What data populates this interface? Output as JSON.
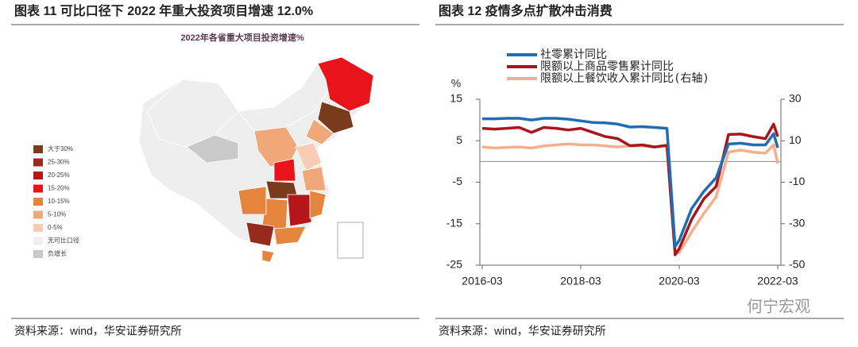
{
  "left": {
    "figure_title": "图表 11  可比口径下 2022 年重大投资项目增速 12.0%",
    "map_title": "2022年各省重大项目投资增速%",
    "legend": [
      {
        "label": "大于30%",
        "color": "#7a3b1c"
      },
      {
        "label": "25-30%",
        "color": "#962a1c"
      },
      {
        "label": "20-25%",
        "color": "#b5161a"
      },
      {
        "label": "15-20%",
        "color": "#e8141a"
      },
      {
        "label": "10-15%",
        "color": "#e5843c"
      },
      {
        "label": "5-10%",
        "color": "#f0a87a"
      },
      {
        "label": "0-5%",
        "color": "#f8cdb3"
      },
      {
        "label": "无可比口径",
        "color": "#eeeeee"
      },
      {
        "label": "负增长",
        "color": "#c9c9c9"
      }
    ],
    "source": "资料来源：wind，华安证券研究所"
  },
  "chart_data": {
    "type": "line",
    "figure_title": "图表 12  疫情多点扩散冲击消费",
    "y_unit": "%",
    "x": [
      "2016-03",
      "2016-06",
      "2016-09",
      "2016-12",
      "2017-03",
      "2017-06",
      "2017-09",
      "2017-12",
      "2018-03",
      "2018-06",
      "2018-09",
      "2018-12",
      "2019-03",
      "2019-06",
      "2019-09",
      "2019-12",
      "2020-02",
      "2020-03",
      "2020-06",
      "2020-09",
      "2020-12",
      "2021-03",
      "2021-06",
      "2021-09",
      "2021-12",
      "2022-02",
      "2022-03"
    ],
    "xticks": [
      "2016-03",
      "2018-03",
      "2020-03",
      "2022-03"
    ],
    "ylim": [
      -25,
      15
    ],
    "yticks": [
      -25,
      -15,
      -5,
      5,
      15
    ],
    "y2lim": [
      -50,
      30
    ],
    "y2ticks": [
      -50,
      -30,
      -10,
      10,
      30
    ],
    "series": [
      {
        "name": "社零累计同比",
        "color": "#1f6db2",
        "values": [
          10.3,
          10.3,
          10.4,
          10.4,
          10.0,
          10.4,
          10.4,
          10.2,
          9.8,
          9.4,
          9.3,
          9.0,
          8.3,
          8.4,
          8.2,
          8.0,
          -20.5,
          -19.0,
          -11.4,
          -7.2,
          -3.9,
          4.2,
          4.4,
          4.0,
          4.0,
          6.7,
          3.3
        ]
      },
      {
        "name": "限额以上商品零售累计同比",
        "color": "#a8161c",
        "values": [
          8.0,
          7.8,
          8.0,
          8.2,
          7.0,
          8.2,
          8.0,
          7.6,
          8.0,
          7.0,
          6.0,
          5.5,
          3.8,
          4.0,
          3.5,
          3.9,
          -22.5,
          -21.0,
          -14.0,
          -9.0,
          -6.0,
          6.5,
          6.6,
          6.0,
          5.5,
          9.0,
          6.0
        ]
      },
      {
        "name": "限额以上餐饮收入累计同比(右轴)",
        "color": "#f4b08c",
        "axis": "y2",
        "values": [
          7.0,
          6.5,
          6.8,
          7.0,
          6.5,
          7.5,
          8.0,
          8.5,
          8.0,
          8.0,
          7.5,
          7.0,
          7.5,
          7.5,
          7.0,
          7.5,
          -43.0,
          -44.0,
          -34.0,
          -25.0,
          -17.0,
          4.5,
          5.5,
          4.5,
          4.0,
          8.0,
          -1.0
        ]
      }
    ],
    "source": "资料来源：wind，华安证券研究所"
  },
  "watermark": "何宁宏观"
}
